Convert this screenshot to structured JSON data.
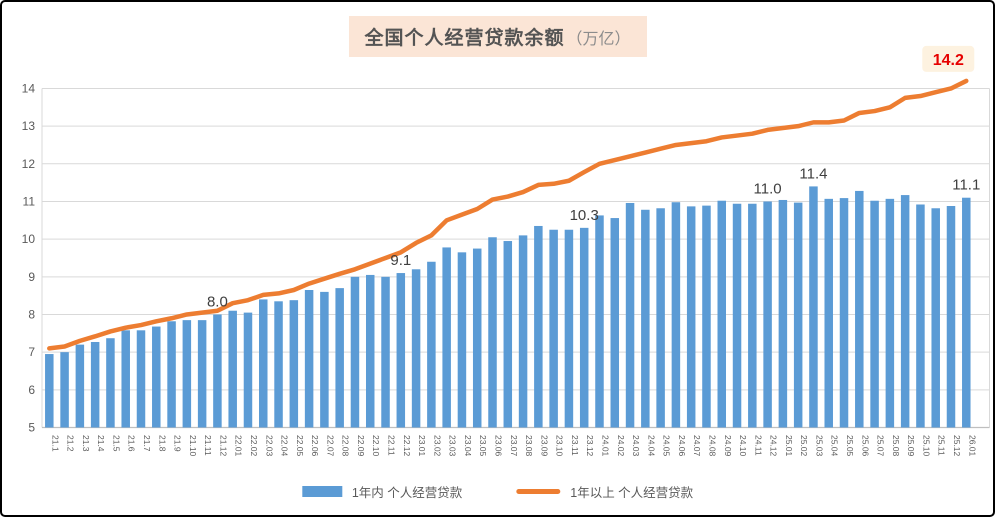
{
  "title": {
    "main": "全国个人经营贷款余额",
    "unit": "（万亿）"
  },
  "legend": {
    "items": [
      {
        "swatch": "bar-swatch",
        "label": "1年内 个人经营贷款",
        "color": "#5B9BD5"
      },
      {
        "swatch": "line-swatch",
        "label": "1年以上 个人经营贷款",
        "color": "#ED7D31"
      }
    ]
  },
  "colors": {
    "bar": "#5B9BD5",
    "line": "#ED7D31",
    "grid": "#D9D9D9",
    "axis": "#BFBFBF",
    "tick_text": "#595959",
    "data_label": "#3F3F3F",
    "callout_bg": "#FDF2E0",
    "callout_text": "#E60000",
    "title_bg": "#FBE5D6"
  },
  "chart_data": {
    "type": "bar",
    "title": "全国个人经营贷款余额（万亿）",
    "xlabel": "",
    "ylabel": "",
    "ylim": [
      5,
      14.6
    ],
    "y_ticks": [
      5,
      6,
      7,
      8,
      9,
      10,
      11,
      12,
      13,
      14
    ],
    "grid": "horizontal",
    "legend_position": "bottom",
    "categories": [
      "21.1",
      "21.2",
      "21.3",
      "21.4",
      "21.5",
      "21.6",
      "21.7",
      "21.8",
      "21.9",
      "21.10",
      "21.11",
      "21.12",
      "22.01",
      "22.02",
      "22.03",
      "22.04",
      "22.05",
      "22.06",
      "22.07",
      "22.08",
      "22.09",
      "22.10",
      "22.11",
      "22.12",
      "23.01",
      "23.02",
      "23.03",
      "23.04",
      "23.05",
      "23.06",
      "23.07",
      "23.08",
      "23.09",
      "23.10",
      "23.11",
      "23.12",
      "24.01",
      "24.02",
      "24.03",
      "24.04",
      "24.05",
      "24.06",
      "24.07",
      "24.08",
      "24.09",
      "24.10",
      "24.11",
      "24.12",
      "25.01",
      "25.02",
      "25.03",
      "25.04",
      "25.05",
      "25.06",
      "25.07",
      "25.08",
      "25.09",
      "25.10",
      "25.11",
      "25.12",
      "26.01"
    ],
    "series": [
      {
        "name": "1年内 个人经营贷款",
        "type": "bar",
        "color": "#5B9BD5",
        "values": [
          6.95,
          7.0,
          7.2,
          7.27,
          7.37,
          7.58,
          7.58,
          7.68,
          7.82,
          7.85,
          7.85,
          8.0,
          8.1,
          8.05,
          8.4,
          8.35,
          8.38,
          8.65,
          8.6,
          8.7,
          9.0,
          9.05,
          9.0,
          9.1,
          9.2,
          9.4,
          9.78,
          9.65,
          9.75,
          10.05,
          9.95,
          10.1,
          10.35,
          10.25,
          10.25,
          10.3,
          10.63,
          10.56,
          10.96,
          10.78,
          10.82,
          10.98,
          10.87,
          10.89,
          11.02,
          10.94,
          10.94,
          11.0,
          11.04,
          10.97,
          11.4,
          11.07,
          11.09,
          11.28,
          11.02,
          11.07,
          11.17,
          10.92,
          10.82,
          10.88,
          11.1
        ]
      },
      {
        "name": "1年以上 个人经营贷款",
        "type": "line",
        "color": "#ED7D31",
        "values": [
          7.1,
          7.15,
          7.3,
          7.42,
          7.55,
          7.65,
          7.72,
          7.82,
          7.9,
          8.0,
          8.05,
          8.1,
          8.3,
          8.38,
          8.52,
          8.56,
          8.65,
          8.82,
          8.95,
          9.08,
          9.2,
          9.35,
          9.5,
          9.65,
          9.9,
          10.1,
          10.5,
          10.65,
          10.8,
          11.05,
          11.13,
          11.25,
          11.44,
          11.47,
          11.55,
          11.78,
          12.0,
          12.1,
          12.2,
          12.3,
          12.4,
          12.5,
          12.55,
          12.6,
          12.7,
          12.75,
          12.8,
          12.9,
          12.95,
          13.0,
          13.1,
          13.1,
          13.15,
          13.35,
          13.4,
          13.5,
          13.75,
          13.8,
          13.9,
          14.0,
          14.2
        ]
      }
    ],
    "point_labels": {
      "bar": [
        {
          "category": "21.12",
          "index": 11,
          "text": "8.0"
        },
        {
          "category": "22.12",
          "index": 23,
          "text": "9.1"
        },
        {
          "category": "23.12",
          "index": 35,
          "text": "10.3"
        },
        {
          "category": "24.12",
          "index": 47,
          "text": "11.0"
        },
        {
          "category": "25.03",
          "index": 50,
          "text": "11.4"
        },
        {
          "category": "26.01",
          "index": 60,
          "text": "11.1"
        }
      ],
      "line_end": {
        "category": "26.01",
        "index": 60,
        "text": "14.2"
      }
    }
  }
}
